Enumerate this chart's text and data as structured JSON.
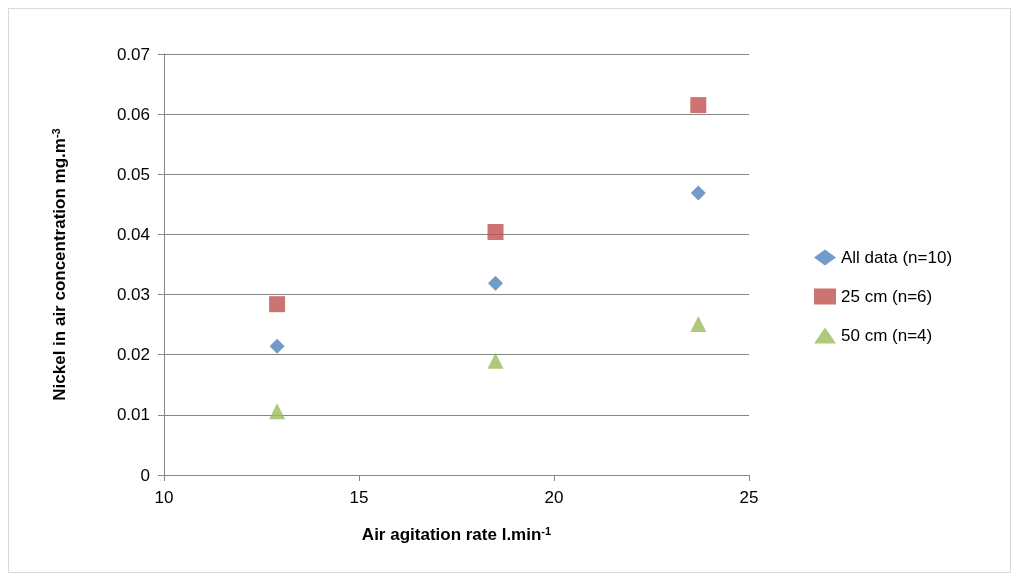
{
  "chart_data": {
    "type": "scatter",
    "xlabel": "Air agitation rate l.min$^{-1}$",
    "ylabel": "Nickel in air concentration mg.m$^{-3}$",
    "x": [
      12.9,
      18.5,
      23.7
    ],
    "series": [
      {
        "name": "All data (n=10)",
        "color": "#4f81bd",
        "marker": "diamond",
        "values": [
          0.0214,
          0.0319,
          0.0469
        ]
      },
      {
        "name": "25 cm (n=6)",
        "color": "#c0504d",
        "marker": "square",
        "values": [
          0.0284,
          0.0404,
          0.0615
        ]
      },
      {
        "name": "50 cm (n=4)",
        "color": "#9bbb59",
        "marker": "triangle",
        "values": [
          0.0106,
          0.019,
          0.0251
        ]
      }
    ],
    "xlim": [
      10,
      25
    ],
    "xticks": [
      10,
      15,
      20,
      25
    ],
    "ylim": [
      0,
      0.07
    ],
    "yticks": [
      0,
      0.01,
      0.02,
      0.03,
      0.04,
      0.05,
      0.06,
      0.07
    ],
    "grid": "y",
    "legend": "right"
  }
}
